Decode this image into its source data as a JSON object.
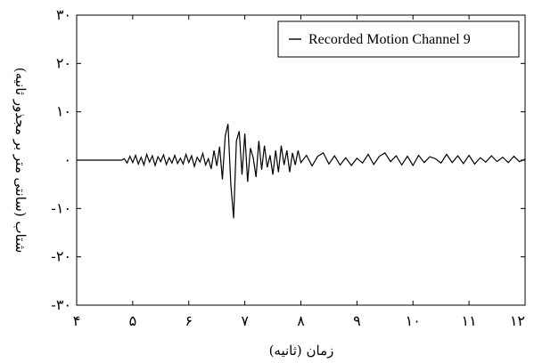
{
  "chart_data": {
    "type": "line",
    "title": "",
    "xlabel": "زمان (ثانیه)",
    "ylabel": "شتاب (سانتی متر بر مجذور ثانیه)",
    "xlim": [
      4,
      12
    ],
    "ylim": [
      -30,
      30
    ],
    "x_ticks": [
      4,
      5,
      6,
      7,
      8,
      9,
      10,
      11,
      12
    ],
    "x_tick_labels": [
      "۴",
      "۵",
      "۶",
      "۷",
      "۸",
      "۹",
      "۱۰",
      "۱۱",
      "۱۲"
    ],
    "y_ticks": [
      30,
      20,
      10,
      0,
      -10,
      -20,
      -30
    ],
    "y_tick_labels": [
      "۳۰",
      "۲۰",
      "۱۰",
      "۰",
      "-۱۰",
      "-۲۰",
      "-۳۰"
    ],
    "grid": false,
    "legend_position": "top-right",
    "series": [
      {
        "name": "Recorded Motion Channel 9",
        "color": "#000000",
        "x": [
          4.0,
          4.1,
          4.2,
          4.3,
          4.4,
          4.5,
          4.6,
          4.7,
          4.8,
          4.85,
          4.9,
          4.95,
          5.0,
          5.05,
          5.1,
          5.15,
          5.2,
          5.25,
          5.3,
          5.35,
          5.4,
          5.45,
          5.5,
          5.55,
          5.6,
          5.65,
          5.7,
          5.75,
          5.8,
          5.85,
          5.9,
          5.95,
          6.0,
          6.05,
          6.1,
          6.15,
          6.2,
          6.25,
          6.3,
          6.35,
          6.4,
          6.45,
          6.5,
          6.55,
          6.6,
          6.65,
          6.7,
          6.75,
          6.8,
          6.85,
          6.9,
          6.95,
          7.0,
          7.05,
          7.1,
          7.15,
          7.2,
          7.25,
          7.3,
          7.35,
          7.4,
          7.45,
          7.5,
          7.55,
          7.6,
          7.65,
          7.7,
          7.75,
          7.8,
          7.85,
          7.9,
          7.95,
          8.0,
          8.1,
          8.2,
          8.3,
          8.4,
          8.5,
          8.6,
          8.7,
          8.8,
          8.9,
          9.0,
          9.1,
          9.2,
          9.3,
          9.4,
          9.5,
          9.6,
          9.7,
          9.8,
          9.9,
          10.0,
          10.1,
          10.2,
          10.3,
          10.4,
          10.5,
          10.6,
          10.7,
          10.8,
          10.9,
          11.0,
          11.1,
          11.2,
          11.3,
          11.4,
          11.5,
          11.6,
          11.7,
          11.8,
          11.9,
          12.0
        ],
        "values": [
          0,
          0,
          0,
          0,
          0,
          0,
          0,
          0,
          0,
          0.3,
          -0.6,
          0.8,
          -0.5,
          1.0,
          -0.8,
          0.6,
          -1.0,
          1.2,
          -0.4,
          0.9,
          -1.1,
          0.7,
          -0.3,
          1.1,
          -0.9,
          0.5,
          -0.6,
          1.0,
          -0.7,
          0.4,
          -0.8,
          1.2,
          -0.5,
          0.9,
          -1.3,
          0.6,
          -0.4,
          1.4,
          -1.0,
          0.3,
          -1.8,
          2.0,
          -1.2,
          2.8,
          -4.0,
          5.0,
          7.5,
          -5.0,
          -12.0,
          4.0,
          6.0,
          -3.0,
          5.5,
          -4.5,
          2.5,
          0.5,
          -3.5,
          4.0,
          -2.0,
          3.0,
          -1.5,
          1.0,
          -3.0,
          2.0,
          -2.5,
          3.0,
          -1.0,
          2.0,
          -2.5,
          1.5,
          -1.0,
          2.0,
          -0.5,
          1.0,
          -1.2,
          0.8,
          1.5,
          -0.8,
          0.9,
          -1.0,
          0.5,
          -1.1,
          0.4,
          -0.6,
          1.2,
          -0.9,
          0.8,
          1.5,
          -0.3,
          0.9,
          -1.0,
          0.8,
          -1.1,
          1.0,
          -0.5,
          0.7,
          0.3,
          -0.6,
          1.2,
          -0.5,
          0.9,
          -0.7,
          1.0,
          -0.8,
          0.5,
          -0.4,
          0.9,
          -0.3,
          0.6,
          -0.5,
          0.8,
          -0.3,
          0.2
        ]
      }
    ]
  }
}
